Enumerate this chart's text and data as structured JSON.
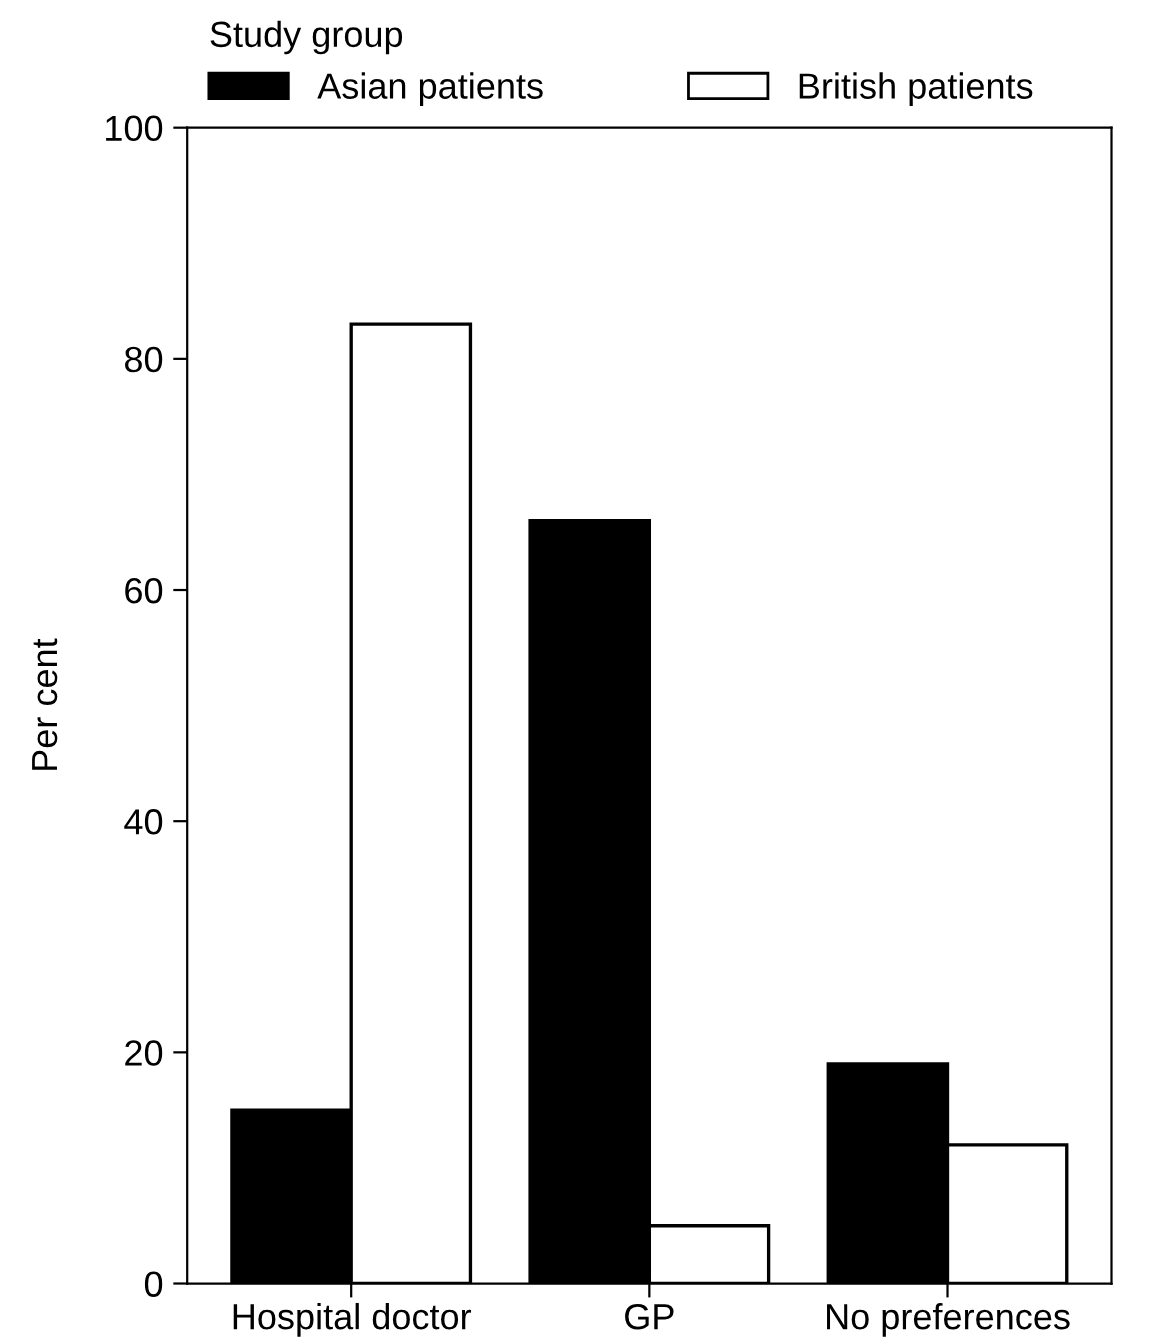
{
  "chart_data": {
    "type": "bar",
    "ylabel": "Per cent",
    "legend_title": "Study group",
    "categories": [
      "Hospital doctor",
      "GP",
      "No preferences"
    ],
    "series": [
      {
        "name": "Asian patients",
        "color": "#000000",
        "values": [
          15,
          66,
          19
        ]
      },
      {
        "name": "British patients",
        "color": "#ffffff",
        "values": [
          83,
          5,
          12
        ]
      }
    ],
    "ylim": [
      0,
      100
    ],
    "yticks": [
      0,
      20,
      40,
      60,
      80,
      100
    ],
    "grid": false,
    "legend": "top left"
  }
}
